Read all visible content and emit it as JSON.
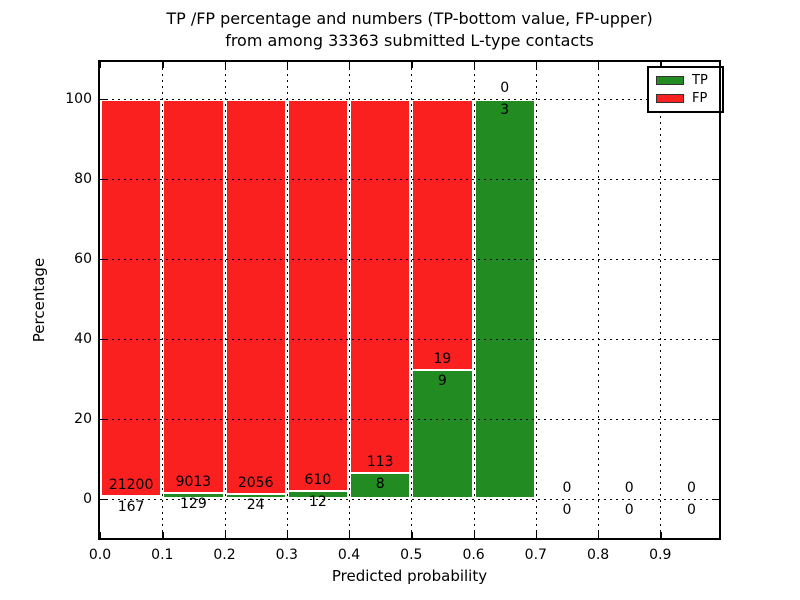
{
  "figure": {
    "title_line1": "TP /FP percentage and numbers (TP-bottom value, FP-upper)",
    "title_line2": "from among 33363 submitted L-type contacts",
    "xlabel": "Predicted probability",
    "ylabel": "Percentage"
  },
  "legend": {
    "position": "upper-right",
    "items": [
      {
        "label": "TP",
        "color": "#228b22"
      },
      {
        "label": "FP",
        "color": "#fb2020"
      }
    ]
  },
  "chart_data": {
    "type": "bar",
    "stacked": true,
    "normalization": "each bin scaled to 100% (TP bottom, FP top); counts shown as text labels",
    "title": "TP /FP percentage and numbers (TP-bottom value, FP-upper) from among 33363 submitted L-type contacts",
    "xlabel": "Predicted probability",
    "ylabel": "Percentage",
    "total_contacts_in_title": 33363,
    "bin_width": 0.1,
    "bin_starts": [
      0.0,
      0.1,
      0.2,
      0.3,
      0.4,
      0.5,
      0.6,
      0.7,
      0.8,
      0.9
    ],
    "x_tick_labels": [
      "0.0",
      "0.1",
      "0.2",
      "0.3",
      "0.4",
      "0.5",
      "0.6",
      "0.7",
      "0.8",
      "0.9"
    ],
    "y_tick_values": [
      0,
      20,
      40,
      60,
      80,
      100
    ],
    "xlim": [
      0.0,
      0.994
    ],
    "ylim": [
      -9.75,
      109.25
    ],
    "grid": "dotted black, both axes, drawn over bars",
    "legend_position": "upper right",
    "bar_edge_color": "#ffffff",
    "series": [
      {
        "name": "TP",
        "color": "#228b22",
        "stack_position": "bottom",
        "values": [
          167,
          129,
          24,
          12,
          8,
          9,
          3,
          0,
          0,
          0
        ]
      },
      {
        "name": "FP",
        "color": "#fb2020",
        "stack_position": "top",
        "values": [
          21200,
          9013,
          2056,
          610,
          113,
          19,
          0,
          0,
          0,
          0
        ]
      }
    ],
    "tp_percent_of_bin": [
      0.78,
      1.41,
      1.15,
      1.93,
      6.61,
      32.14,
      100.0,
      0,
      0,
      0
    ]
  }
}
